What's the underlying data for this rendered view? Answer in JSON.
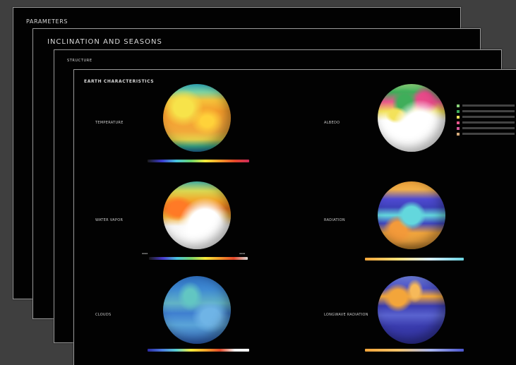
{
  "sheets": [
    {
      "title": "PARAMETERS"
    },
    {
      "title": "INCLINATION AND SEASONS"
    },
    {
      "title": "STRUCTURE"
    },
    {
      "title": "EARTH CHARACTERISTICS"
    }
  ],
  "panels": {
    "temperature": {
      "label": "TEMPERATURE",
      "colorbar": "spectral"
    },
    "albedo": {
      "label": "ALBEDO"
    },
    "water_vapor": {
      "label": "WATER VAPOR"
    },
    "radiation": {
      "label": "RADIATION",
      "colorbar": "orange-to-cyan"
    },
    "clouds": {
      "label": "CLOUDS",
      "colorbar": "spectral"
    },
    "longwave": {
      "label": "LONGWAVE RADIATION",
      "colorbar": "orange-to-blue"
    }
  },
  "legend": [
    {
      "color": "#8bd27a"
    },
    {
      "color": "#3fae5a"
    },
    {
      "color": "#f3e25a"
    },
    {
      "color": "#e9578d"
    },
    {
      "color": "#d85a9c"
    },
    {
      "color": "#d5aa7a"
    }
  ],
  "icons": {
    "globe": "earth-globe-icon"
  }
}
